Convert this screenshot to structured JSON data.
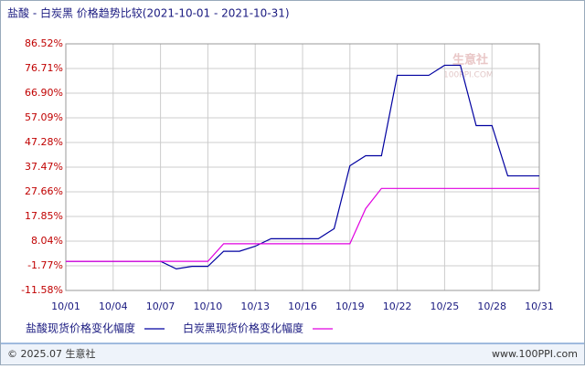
{
  "chart_data": {
    "type": "line",
    "title": "盐酸 - 白炭黑 价格趋势比较(2021-10-01 - 2021-10-31)",
    "categories": [
      "10/01",
      null,
      null,
      "10/04",
      null,
      null,
      "10/07",
      null,
      null,
      "10/10",
      null,
      null,
      "10/13",
      null,
      null,
      "10/16",
      null,
      null,
      "10/19",
      null,
      null,
      "10/22",
      null,
      null,
      "10/25",
      null,
      null,
      "10/28",
      null,
      null,
      "10/31"
    ],
    "series": [
      {
        "name": "盐酸现货价格变化幅度",
        "color": "#0000a0",
        "values": [
          0,
          0,
          0,
          0,
          0,
          0,
          0,
          -3,
          -2,
          -2,
          4,
          4,
          6,
          9,
          9,
          9,
          9,
          13,
          38,
          42,
          42,
          74,
          74,
          74,
          78,
          78,
          54,
          54,
          34,
          34,
          34
        ]
      },
      {
        "name": "白炭黑现货价格变化幅度",
        "color": "#e000e0",
        "values": [
          0,
          0,
          0,
          0,
          0,
          0,
          0,
          0,
          0,
          0,
          7,
          7,
          7,
          7,
          7,
          7,
          7,
          7,
          7,
          21,
          29,
          29,
          29,
          29,
          29,
          29,
          29,
          29,
          29,
          29,
          29
        ]
      }
    ],
    "ylim": [
      -11.58,
      86.52
    ],
    "yticks": [
      {
        "value": 86.52,
        "label": "86.52%"
      },
      {
        "value": 76.71,
        "label": "76.71%"
      },
      {
        "value": 66.9,
        "label": "66.90%"
      },
      {
        "value": 57.09,
        "label": "57.09%"
      },
      {
        "value": 47.28,
        "label": "47.28%"
      },
      {
        "value": 37.47,
        "label": "37.47%"
      },
      {
        "value": 27.66,
        "label": "27.66%"
      },
      {
        "value": 17.85,
        "label": "17.85%"
      },
      {
        "value": 8.04,
        "label": "8.04%"
      },
      {
        "value": -1.77,
        "label": "-1.77%"
      },
      {
        "value": -11.58,
        "label": "-11.58%"
      }
    ],
    "grid": true,
    "watermark": [
      "生意社",
      "100PPI.COM"
    ],
    "footer_left": "© 2025.07 生意社",
    "footer_right": "www.100PPI.com"
  }
}
